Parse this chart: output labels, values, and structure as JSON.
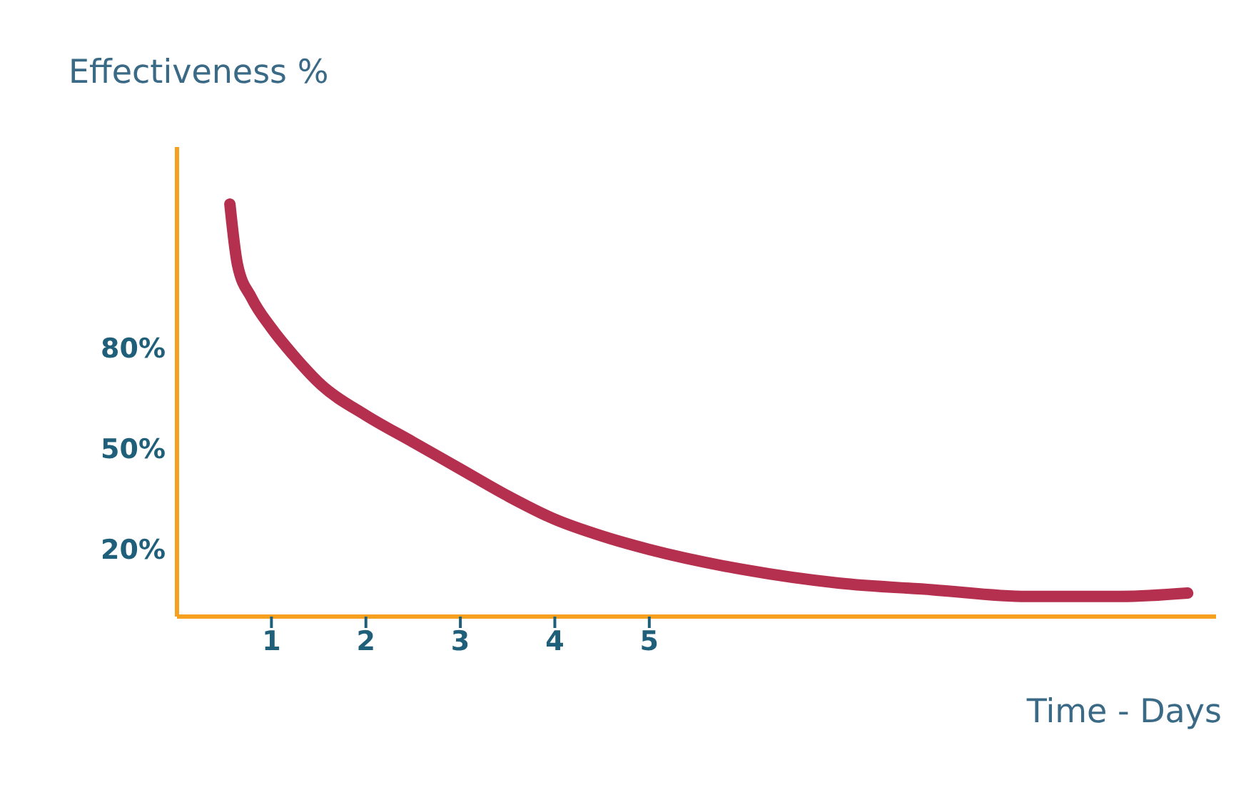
{
  "chart_data": {
    "type": "line",
    "ylabel": "Effectiveness %",
    "xlabel": "Time - Days",
    "x": [
      0.56,
      0.64,
      0.79,
      1,
      1.23,
      1.53,
      2,
      2.5,
      3,
      3.5,
      4,
      4.5,
      5,
      6,
      7,
      8,
      9,
      10,
      10.7
    ],
    "series": [
      {
        "color": "#b5304e",
        "values": [
          123,
          105,
          95,
          86,
          78,
          69,
          60,
          52,
          44,
          36,
          29,
          24,
          20,
          14,
          10,
          8,
          6,
          6,
          7
        ]
      }
    ],
    "xlim": [
      0,
      11
    ],
    "xticks": [
      1,
      2,
      3,
      4,
      5
    ],
    "ylim": [
      0,
      140
    ],
    "yticks": [
      {
        "value": 20,
        "label": "20%"
      },
      {
        "value": 50,
        "label": "50%"
      },
      {
        "value": 80,
        "label": "80%"
      }
    ],
    "grid": false,
    "legend": false,
    "marker": "none",
    "line_style": "solid"
  }
}
